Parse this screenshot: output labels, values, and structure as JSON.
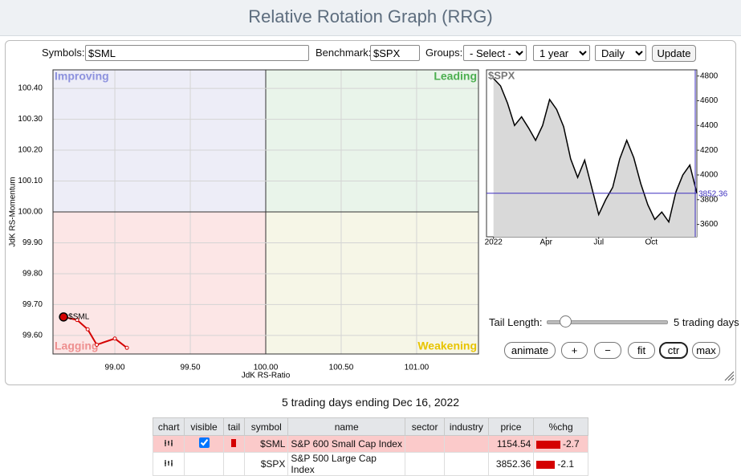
{
  "header": {
    "title": "Relative Rotation Graph (RRG)"
  },
  "controls": {
    "symbols_label": "Symbols:",
    "symbols": "$SML",
    "benchmark_label": "Benchmark:",
    "benchmark": "$SPX",
    "groups_label": "Groups:",
    "groups": "- Select -",
    "period": "1 year",
    "frequency": "Daily",
    "update": "Update",
    "tail_length_label": "Tail Length:",
    "tail_length": "5 trading days",
    "buttons": [
      "animate",
      "+",
      "−",
      "fit",
      "ctr",
      "max"
    ]
  },
  "chart_data": [
    {
      "type": "rrg",
      "x_label": "JdK RS-Ratio",
      "y_label": "JdK RS-Momentum",
      "quadrant_labels": {
        "improving": "Improving",
        "leading": "Leading",
        "lagging": "Lagging",
        "weakening": "Weakening"
      },
      "xlim": [
        98.59,
        101.41
      ],
      "ylim": [
        99.54,
        100.46
      ],
      "xticks": [
        {
          "value": 99,
          "label": "99.00"
        },
        {
          "value": 99.5,
          "label": "99.50"
        },
        {
          "value": 100,
          "label": "100.00"
        },
        {
          "value": 100.5,
          "label": "100.50"
        },
        {
          "value": 101,
          "label": "101.00"
        }
      ],
      "yticks": [
        {
          "value": 99.6,
          "label": "99.60"
        },
        {
          "value": 99.7,
          "label": "99.70"
        },
        {
          "value": 99.8,
          "label": "99.80"
        },
        {
          "value": 99.9,
          "label": "99.90"
        },
        {
          "value": 100,
          "label": "100.00"
        },
        {
          "value": 100.1,
          "label": "100.10"
        },
        {
          "value": 100.2,
          "label": "100.20"
        },
        {
          "value": 100.3,
          "label": "100.30"
        },
        {
          "value": 100.4,
          "label": "100.40"
        }
      ],
      "grid": true,
      "series": [
        {
          "name": "$SML",
          "color": "#d40000",
          "x": [
            99.08,
            99.0,
            98.88,
            98.82,
            98.75,
            98.66
          ],
          "y": [
            99.56,
            99.59,
            99.57,
            99.62,
            99.65,
            99.66
          ]
        }
      ]
    },
    {
      "type": "line",
      "title": "$SPX",
      "color": "#000000",
      "fill": "#d9d9d9",
      "x": [
        0,
        0.4,
        0.8,
        1.2,
        1.6,
        2,
        2.4,
        2.8,
        3.2,
        3.6,
        4,
        4.4,
        4.8,
        5.2,
        5.6,
        6,
        6.4,
        6.8,
        7.2,
        7.6,
        8,
        8.4,
        8.8,
        9.2,
        9.6,
        10,
        10.4,
        10.8,
        11.2,
        11.6
      ],
      "values": [
        4780,
        4720,
        4580,
        4400,
        4470,
        4380,
        4280,
        4400,
        4610,
        4530,
        4390,
        4130,
        3980,
        4120,
        3900,
        3680,
        3800,
        3900,
        4130,
        4280,
        4140,
        3930,
        3760,
        3640,
        3700,
        3620,
        3860,
        4000,
        4080,
        3852.36
      ],
      "xlim": [
        -0.4,
        11.6
      ],
      "xticks": [
        {
          "value": 0,
          "label": "2022"
        },
        {
          "value": 3,
          "label": "Apr"
        },
        {
          "value": 6,
          "label": "Jul"
        },
        {
          "value": 9,
          "label": "Oct"
        }
      ],
      "ylim": [
        3500,
        4850
      ],
      "yticks": [
        3600,
        3800,
        4000,
        4200,
        4400,
        4600,
        4800
      ],
      "last_color": "#3d2fbf"
    }
  ],
  "caption": "5 trading days ending Dec 16, 2022",
  "table": {
    "columns": [
      "chart",
      "visible",
      "tail",
      "symbol",
      "name",
      "sector",
      "industry",
      "price",
      "%chg"
    ],
    "rows": [
      {
        "visible": true,
        "tail": true,
        "symbol": "$SML",
        "name": "S&P 600 Small Cap Index",
        "price": 1154.54,
        "pct_change": -2.7
      },
      {
        "visible": false,
        "tail": false,
        "symbol": "$SPX",
        "name": "S&P 500 Large Cap Index",
        "price": 3852.36,
        "pct_change": -2.1
      }
    ]
  }
}
